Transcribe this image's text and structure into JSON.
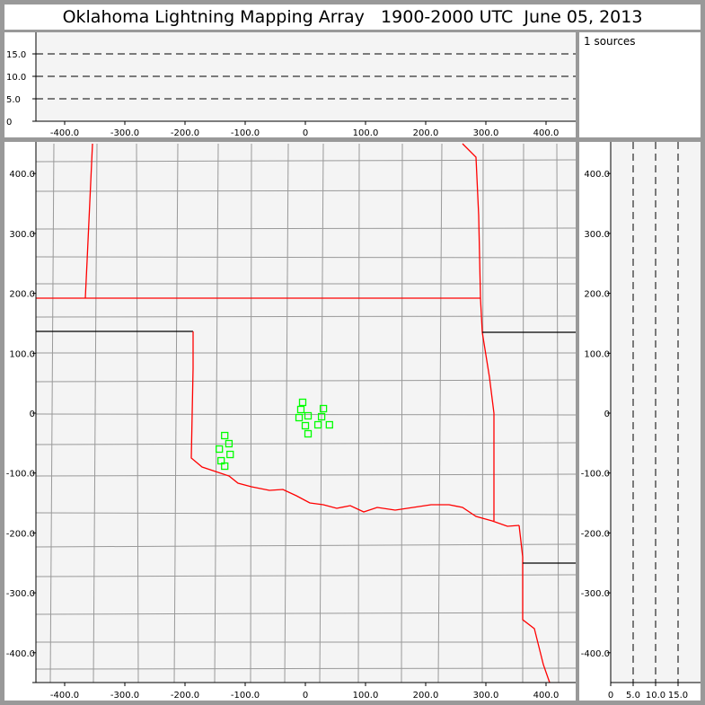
{
  "title": "Oklahoma Lightning Mapping Array   1900-2000 UTC  June 05, 2013",
  "info": {
    "source_count": "1 sources"
  },
  "colors": {
    "background": "#f4f4f4",
    "frame": "#999999",
    "state_border": "#ff0000",
    "county": "#999999",
    "source": "#00ff00"
  },
  "chart_data": [
    {
      "type": "scatter",
      "panel": "altitude-vs-east-west",
      "xlim": [
        -450,
        450
      ],
      "ylim": [
        0,
        20
      ],
      "xticks": [
        "-400.0",
        "-300.0",
        "-200.0",
        "-100.0",
        "0",
        "100.0",
        "200.0",
        "300.0",
        "400.0"
      ],
      "yticks": [
        "0",
        "5.0",
        "10.0",
        "15.0"
      ],
      "grid": "dashed horizontal at 5, 10, 15",
      "points": []
    },
    {
      "type": "scatter",
      "panel": "plan-view-map",
      "xlim": [
        -450,
        450
      ],
      "ylim": [
        -450,
        450
      ],
      "xticks": [
        "-400.0",
        "-300.0",
        "-200.0",
        "-100.0",
        "0",
        "100.0",
        "200.0",
        "300.0",
        "400.0"
      ],
      "yticks": [
        "400.0",
        "300.0",
        "200.0",
        "100.0",
        "0",
        "-100.0",
        "-200.0",
        "-300.0",
        "-400.0"
      ],
      "points": [
        [
          -4.5,
          18
        ],
        [
          -7.5,
          6
        ],
        [
          -10.4,
          -7.5
        ],
        [
          4.5,
          -4.5
        ],
        [
          30,
          7.5
        ],
        [
          27,
          -6
        ],
        [
          0,
          -21
        ],
        [
          21,
          -19.5
        ],
        [
          40,
          -19.5
        ],
        [
          4.5,
          -34.5
        ],
        [
          -134,
          -37.5
        ],
        [
          -127,
          -51
        ],
        [
          -143,
          -60
        ],
        [
          -125,
          -69
        ],
        [
          -140,
          -79.5
        ],
        [
          -134,
          -88.5
        ]
      ]
    },
    {
      "type": "scatter",
      "panel": "north-south-vs-altitude",
      "xlim": [
        0,
        20
      ],
      "ylim": [
        -450,
        450
      ],
      "xticks": [
        "0",
        "5.0",
        "10.0",
        "15.0"
      ],
      "yticks": [
        "400.0",
        "300.0",
        "200.0",
        "100.0",
        "0",
        "-100.0",
        "-200.0",
        "-300.0",
        "-400.0"
      ],
      "grid": "dashed vertical at 5, 10, 15",
      "points": []
    }
  ]
}
